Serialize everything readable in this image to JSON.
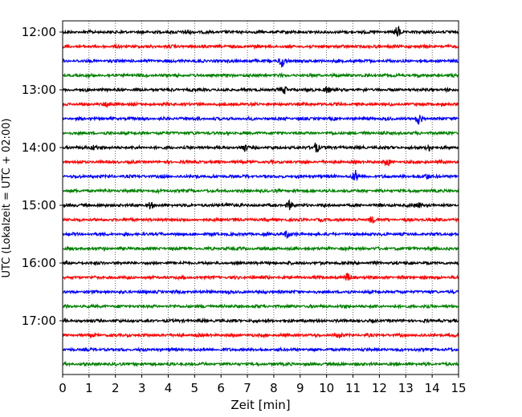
{
  "chart_data": {
    "type": "line",
    "title": "",
    "xlabel": "Zeit  [min]",
    "ylabel": "UTC (Lokalzeit = UTC + 02:00)",
    "xlim": [
      0,
      15
    ],
    "x_ticks": [
      "0",
      "1",
      "2",
      "3",
      "4",
      "5",
      "6",
      "7",
      "8",
      "9",
      "10",
      "11",
      "12",
      "13",
      "14",
      "15"
    ],
    "y_tick_labels": [
      "12:00",
      "13:00",
      "14:00",
      "15:00",
      "16:00",
      "17:00"
    ],
    "grid": "vertical dotted at each minute",
    "legend": "none",
    "trace_start_hour": "12:00",
    "trace_interval_minutes": 15,
    "trace_count": 24,
    "trace_colors": [
      "#000000",
      "#ff0000",
      "#0000ff",
      "#008000"
    ],
    "events": [
      {
        "trace": 0,
        "minute": 4.7,
        "amplitude": 0.5
      },
      {
        "trace": 0,
        "minute": 12.7,
        "amplitude": 0.9
      },
      {
        "trace": 2,
        "minute": 8.3,
        "amplitude": 1.0
      },
      {
        "trace": 4,
        "minute": 8.4,
        "amplitude": 0.6
      },
      {
        "trace": 4,
        "minute": 10.0,
        "amplitude": 0.5
      },
      {
        "trace": 5,
        "minute": 1.7,
        "amplitude": 0.6
      },
      {
        "trace": 6,
        "minute": 13.5,
        "amplitude": 0.9
      },
      {
        "trace": 8,
        "minute": 1.2,
        "amplitude": 0.5
      },
      {
        "trace": 8,
        "minute": 6.9,
        "amplitude": 0.5
      },
      {
        "trace": 8,
        "minute": 9.6,
        "amplitude": 1.0
      },
      {
        "trace": 8,
        "minute": 13.9,
        "amplitude": 0.5
      },
      {
        "trace": 9,
        "minute": 12.3,
        "amplitude": 0.5
      },
      {
        "trace": 10,
        "minute": 11.1,
        "amplitude": 0.9
      },
      {
        "trace": 10,
        "minute": 13.8,
        "amplitude": 0.5
      },
      {
        "trace": 12,
        "minute": 3.3,
        "amplitude": 0.5
      },
      {
        "trace": 12,
        "minute": 6.3,
        "amplitude": 0.5
      },
      {
        "trace": 12,
        "minute": 8.6,
        "amplitude": 0.7
      },
      {
        "trace": 12,
        "minute": 13.5,
        "amplitude": 0.5
      },
      {
        "trace": 13,
        "minute": 11.7,
        "amplitude": 0.5
      },
      {
        "trace": 14,
        "minute": 8.5,
        "amplitude": 0.6
      },
      {
        "trace": 17,
        "minute": 10.8,
        "amplitude": 0.7
      },
      {
        "trace": 21,
        "minute": 10.5,
        "amplitude": 0.4
      }
    ]
  }
}
